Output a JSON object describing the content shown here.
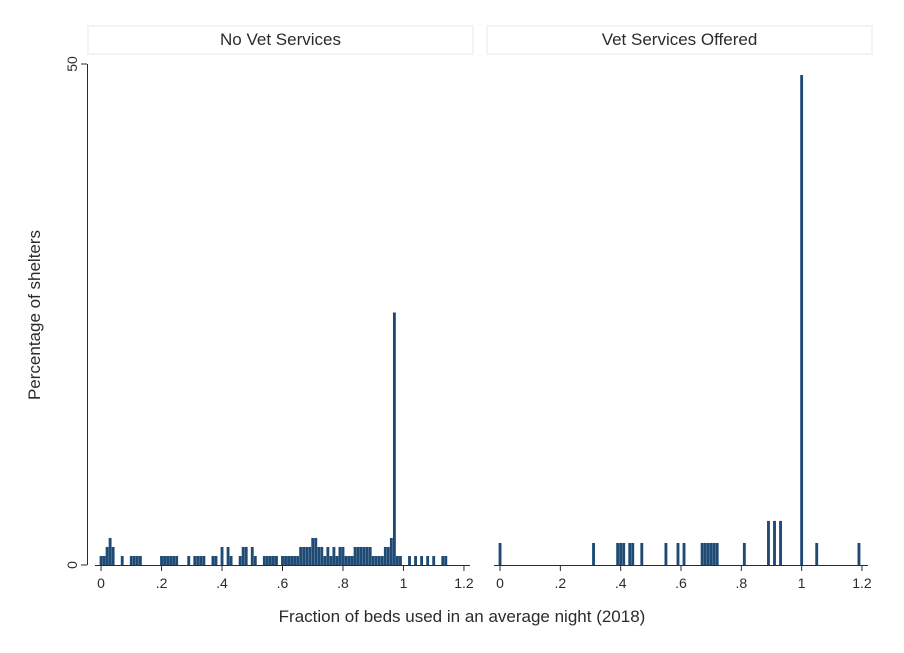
{
  "chart_data": {
    "type": "bar",
    "ylabel": "Percentage of shelters",
    "xlabel": "Fraction of beds used in an average night (2018)",
    "xlim": [
      -0.02,
      1.22
    ],
    "ylim": [
      0,
      50
    ],
    "x_ticks": [
      0,
      0.2,
      0.4,
      0.6,
      0.8,
      1,
      1.2
    ],
    "x_tick_labels": [
      "0",
      ".2",
      ".4",
      ".6",
      ".8",
      "1",
      "1.2"
    ],
    "y_ticks": [
      0,
      50
    ],
    "y_tick_labels": [
      "0",
      "50"
    ],
    "bar_width": 0.01,
    "bar_color": "#1f4a73",
    "panels": [
      {
        "title": "No Vet Services",
        "x": [
          0.0,
          0.01,
          0.02,
          0.03,
          0.04,
          0.07,
          0.1,
          0.11,
          0.12,
          0.13,
          0.2,
          0.21,
          0.22,
          0.23,
          0.24,
          0.25,
          0.29,
          0.31,
          0.32,
          0.33,
          0.34,
          0.37,
          0.38,
          0.4,
          0.42,
          0.43,
          0.46,
          0.47,
          0.48,
          0.5,
          0.51,
          0.54,
          0.55,
          0.56,
          0.57,
          0.58,
          0.6,
          0.61,
          0.62,
          0.63,
          0.64,
          0.65,
          0.66,
          0.67,
          0.68,
          0.69,
          0.7,
          0.71,
          0.72,
          0.73,
          0.74,
          0.75,
          0.76,
          0.77,
          0.78,
          0.79,
          0.8,
          0.81,
          0.82,
          0.83,
          0.84,
          0.85,
          0.86,
          0.87,
          0.88,
          0.89,
          0.9,
          0.91,
          0.92,
          0.93,
          0.94,
          0.95,
          0.96,
          0.97,
          0.98,
          0.99,
          1.02,
          1.04,
          1.06,
          1.08,
          1.1,
          1.13,
          1.14
        ],
        "values": [
          0.9,
          0.9,
          1.8,
          2.7,
          1.8,
          0.9,
          0.9,
          0.9,
          0.9,
          0.9,
          0.9,
          0.9,
          0.9,
          0.9,
          0.9,
          0.9,
          0.9,
          0.9,
          0.9,
          0.9,
          0.9,
          0.9,
          0.9,
          1.8,
          1.8,
          0.9,
          0.9,
          1.8,
          1.8,
          1.8,
          0.9,
          0.9,
          0.9,
          0.9,
          0.9,
          0.9,
          0.9,
          0.9,
          0.9,
          0.9,
          0.9,
          0.9,
          1.8,
          1.8,
          1.8,
          1.8,
          2.7,
          2.7,
          1.8,
          1.8,
          0.9,
          1.8,
          0.9,
          1.8,
          0.9,
          1.8,
          1.8,
          0.9,
          0.9,
          0.9,
          1.8,
          1.8,
          1.8,
          1.8,
          1.8,
          1.8,
          0.9,
          0.9,
          0.9,
          0.9,
          1.8,
          1.8,
          2.7,
          25.2,
          0.9,
          0.9,
          0.9,
          0.9,
          0.9,
          0.9,
          0.9,
          0.9,
          0.9
        ]
      },
      {
        "title": "Vet Services Offered",
        "x": [
          0.0,
          0.31,
          0.39,
          0.4,
          0.41,
          0.43,
          0.44,
          0.47,
          0.55,
          0.59,
          0.61,
          0.67,
          0.68,
          0.69,
          0.7,
          0.71,
          0.72,
          0.81,
          0.89,
          0.91,
          0.93,
          1.0,
          1.05,
          1.19
        ],
        "values": [
          2.2,
          2.2,
          2.2,
          2.2,
          2.2,
          2.2,
          2.2,
          2.2,
          2.2,
          2.2,
          2.2,
          2.2,
          2.2,
          2.2,
          2.2,
          2.2,
          2.2,
          2.2,
          4.4,
          4.4,
          4.4,
          48.9,
          2.2,
          2.2
        ]
      }
    ]
  }
}
